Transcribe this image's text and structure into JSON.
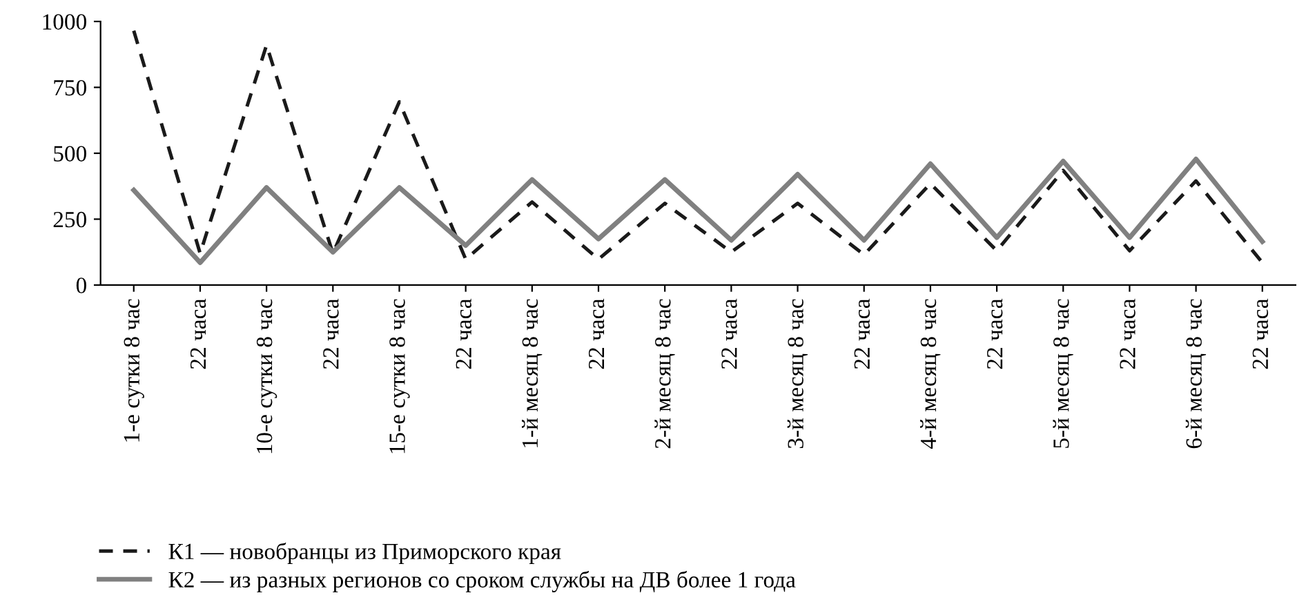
{
  "chart_data": {
    "type": "line",
    "categories": [
      "1-е сутки 8 час",
      "22 часа",
      "10-е сутки 8 час",
      "22 часа",
      "15-е сутки 8 час",
      "22 часа",
      "1-й месяц 8 час",
      "22 часа",
      "2-й месяц 8 час",
      "22 часа",
      "3-й месяц 8 час",
      "22 часа",
      "4-й месяц 8 час",
      "22 часа",
      "5-й месяц 8 час",
      "22 часа",
      "6-й месяц 8 час",
      "22 часа"
    ],
    "series": [
      {
        "name": "К1 — новобранцы из Приморского края",
        "color": "#1a1a1a",
        "line_style": "dashed",
        "values": [
          965,
          120,
          910,
          120,
          695,
          98,
          315,
          98,
          310,
          125,
          310,
          115,
          385,
          130,
          435,
          130,
          395,
          85
        ]
      },
      {
        "name": "К2 — из разных регионов со сроком службы на ДВ более 1 года",
        "color": "#808080",
        "line_style": "solid",
        "values": [
          360,
          85,
          370,
          125,
          370,
          150,
          400,
          175,
          400,
          170,
          420,
          170,
          460,
          180,
          470,
          180,
          478,
          165
        ]
      }
    ],
    "ylim": [
      0,
      1000
    ],
    "yticks": [
      0,
      250,
      500,
      750,
      1000
    ],
    "grid": false,
    "legend": "bottom",
    "marker": "none"
  }
}
